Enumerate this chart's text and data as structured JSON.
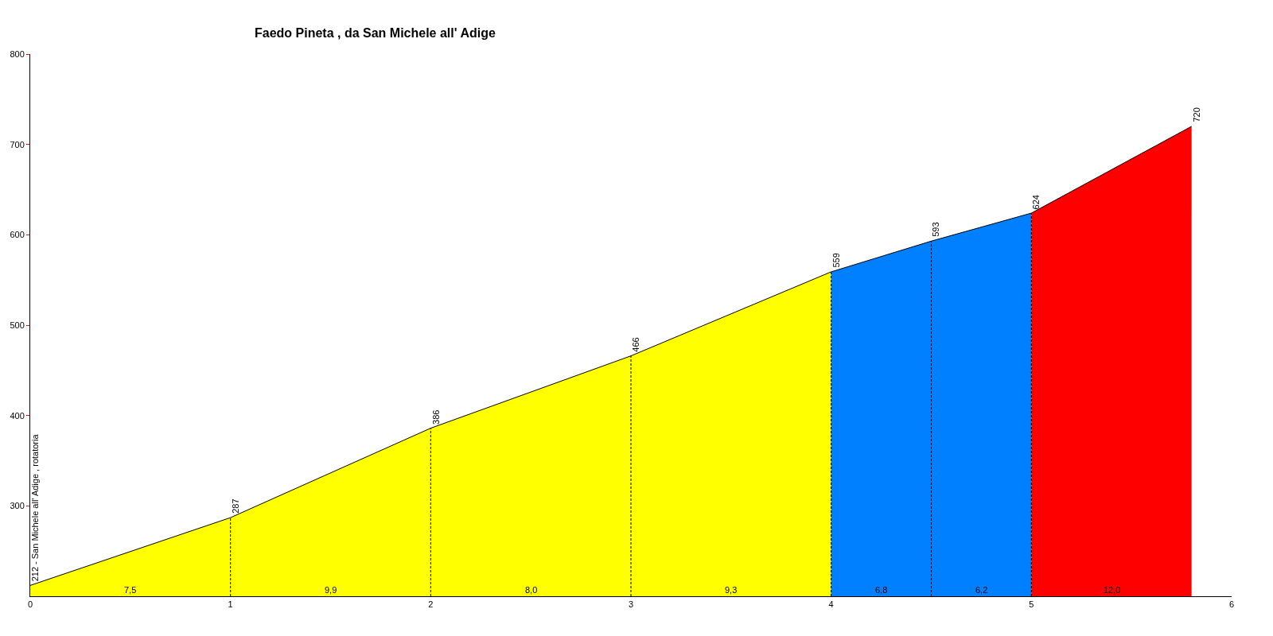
{
  "chart_data": {
    "type": "area",
    "title": "Faedo Pineta , da San Michele all' Adige",
    "series": [
      {
        "x": [
          0,
          1,
          2,
          3,
          4
        ],
        "values": [
          212,
          287,
          386,
          466,
          559
        ],
        "color": "#ffff00",
        "value_labels": [
          "212 - San Michele all' Adige , rotatoria",
          "287",
          "386",
          "466",
          "559"
        ]
      },
      {
        "x": [
          4,
          4.5,
          5
        ],
        "values": [
          559,
          593,
          624
        ],
        "color": "#0080ff",
        "value_labels": [
          null,
          "593",
          "624"
        ]
      },
      {
        "x": [
          5,
          5.8
        ],
        "values": [
          624,
          720
        ],
        "color": "#ff0000",
        "value_labels": [
          null,
          "720"
        ]
      }
    ],
    "annotations": [
      "7,5",
      "9,9",
      "8,0",
      "9,3",
      "6,8",
      "6,2",
      "12,0"
    ],
    "ref_lines": [
      {
        "axis": "x",
        "value": 1,
        "color": "#000000",
        "line_style": "dashed"
      },
      {
        "axis": "x",
        "value": 2,
        "color": "#000000",
        "line_style": "dashed"
      },
      {
        "axis": "x",
        "value": 3,
        "color": "#000000",
        "line_style": "dashed"
      },
      {
        "axis": "x",
        "value": 4,
        "color": "#000000",
        "line_style": "dashed"
      },
      {
        "axis": "x",
        "value": 4.5,
        "color": "#000000",
        "line_style": "dashed"
      },
      {
        "axis": "x",
        "value": 5,
        "color": "#000000",
        "line_style": "dashed"
      }
    ],
    "xlim": [
      0,
      6
    ],
    "xticks": [
      0,
      1,
      2,
      3,
      4,
      5,
      6
    ],
    "ylim": [
      200,
      800
    ],
    "yticks": [
      300,
      400,
      500,
      600,
      700,
      800
    ],
    "marker": "none",
    "line_style": "solid"
  }
}
